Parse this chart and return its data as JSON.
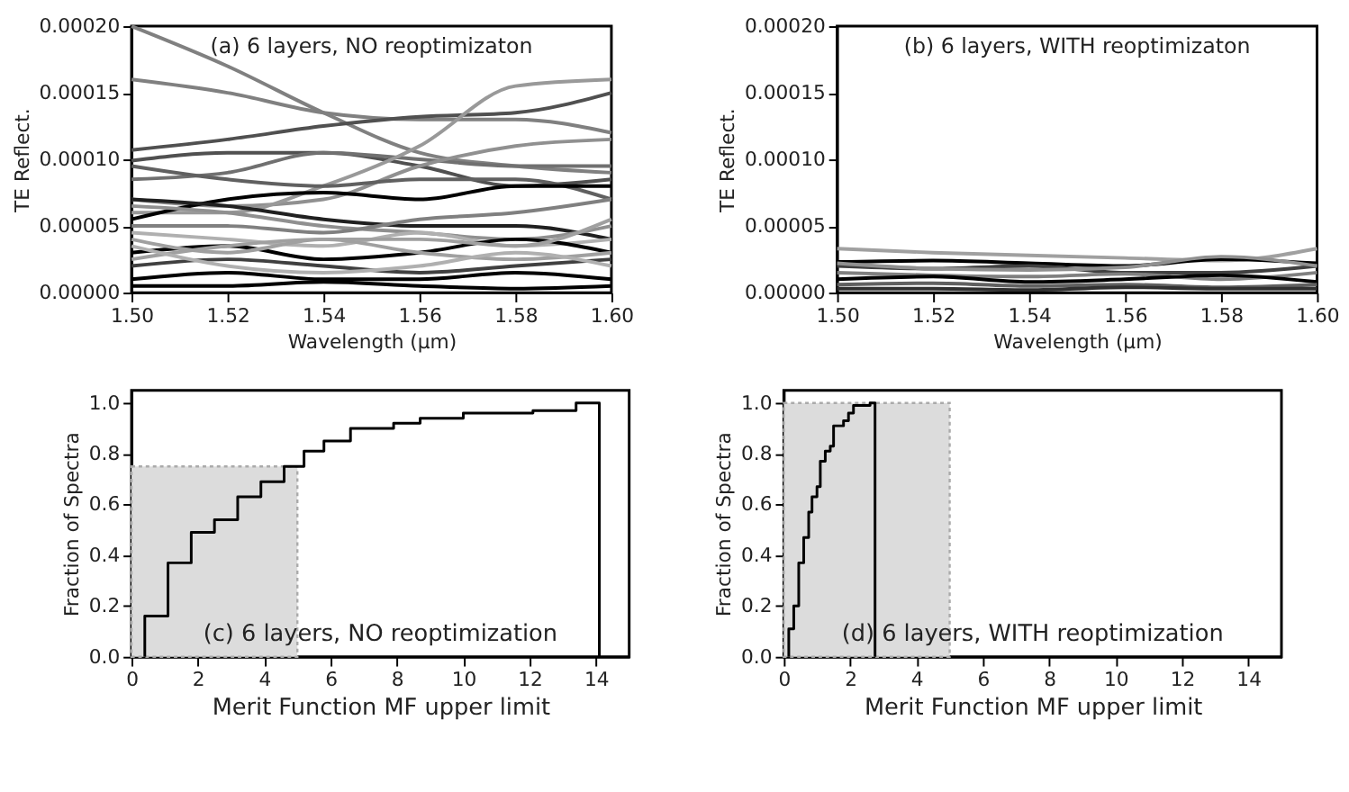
{
  "chart_data": [
    {
      "type": "line",
      "xlabel": "Wavelength (μm)",
      "ylabel": "TE Reflect.",
      "annotations": [
        "(a) 6 layers, NO reoptimizaton"
      ],
      "grid": false,
      "line_style": "solid",
      "marker": "none",
      "xlim": [
        1.5,
        1.6
      ],
      "ylim": [
        0,
        0.0002
      ],
      "xticks": [
        {
          "value": 1.5,
          "label": "1.50"
        },
        {
          "value": 1.52,
          "label": "1.52"
        },
        {
          "value": 1.54,
          "label": "1.54"
        },
        {
          "value": 1.56,
          "label": "1.56"
        },
        {
          "value": 1.58,
          "label": "1.58"
        },
        {
          "value": 1.6,
          "label": "1.60"
        }
      ],
      "yticks": [
        {
          "value": 0,
          "label": "0.00000"
        },
        {
          "value": 5e-05,
          "label": "0.00005"
        },
        {
          "value": 0.0001,
          "label": "0.00010"
        },
        {
          "value": 0.00015,
          "label": "0.00015"
        },
        {
          "value": 0.0002,
          "label": "0.00020"
        }
      ],
      "x": [
        1.5,
        1.52,
        1.54,
        1.56,
        1.58,
        1.6
      ],
      "series": [
        {
          "color": "#808080",
          "values": [
            0.0002,
            0.00017,
            0.000135,
            0.000105,
            9.5e-05,
            9e-05
          ]
        },
        {
          "color": "#808080",
          "values": [
            0.00016,
            0.00015,
            0.000135,
            0.00013,
            0.00013,
            0.00012
          ]
        },
        {
          "color": "#505050",
          "values": [
            0.000107,
            0.000115,
            0.000125,
            0.000132,
            0.000135,
            0.00015
          ]
        },
        {
          "color": "#505050",
          "values": [
            9.9e-05,
            0.000105,
            0.000105,
            9.5e-05,
            8e-05,
            8.5e-05
          ]
        },
        {
          "color": "#707070",
          "values": [
            8.5e-05,
            9e-05,
            0.000105,
            0.0001,
            9.5e-05,
            9.5e-05
          ]
        },
        {
          "color": "#909090",
          "values": [
            7e-05,
            6.5e-05,
            7e-05,
            9.5e-05,
            0.00011,
            0.000115
          ]
        },
        {
          "color": "#999999",
          "values": [
            6e-05,
            6e-05,
            8e-05,
            0.00011,
            0.000155,
            0.00016
          ]
        },
        {
          "color": "#606060",
          "values": [
            9.5e-05,
            8.5e-05,
            8e-05,
            8.5e-05,
            8.5e-05,
            7e-05
          ]
        },
        {
          "color": "#000000",
          "values": [
            5.5e-05,
            7e-05,
            7.5e-05,
            7e-05,
            8e-05,
            8e-05
          ]
        },
        {
          "color": "#202020",
          "values": [
            7e-05,
            6.5e-05,
            5.5e-05,
            5e-05,
            5e-05,
            4e-05
          ]
        },
        {
          "color": "#909090",
          "values": [
            6.5e-05,
            6e-05,
            5e-05,
            4.5e-05,
            4e-05,
            5e-05
          ]
        },
        {
          "color": "#b0b0b0",
          "values": [
            4.5e-05,
            4e-05,
            3.5e-05,
            4.5e-05,
            3.5e-05,
            4e-05
          ]
        },
        {
          "color": "#000000",
          "values": [
            3e-05,
            3.5e-05,
            2.5e-05,
            3e-05,
            4e-05,
            3e-05
          ]
        },
        {
          "color": "#404040",
          "values": [
            2e-05,
            2.5e-05,
            2e-05,
            1.5e-05,
            2e-05,
            2.5e-05
          ]
        },
        {
          "color": "#000000",
          "values": [
            1e-05,
            1.5e-05,
            1e-05,
            1e-05,
            1.5e-05,
            1e-05
          ]
        },
        {
          "color": "#a0a0a0",
          "values": [
            4e-05,
            3e-05,
            4e-05,
            3e-05,
            2.5e-05,
            3e-05
          ]
        },
        {
          "color": "#a0a0a0",
          "values": [
            2.5e-05,
            3.5e-05,
            4e-05,
            4e-05,
            3.5e-05,
            5.5e-05
          ]
        },
        {
          "color": "#000000",
          "values": [
            5e-06,
            5e-06,
            8e-06,
            5e-06,
            3e-06,
            5e-06
          ]
        },
        {
          "color": "#808080",
          "values": [
            5e-05,
            5e-05,
            4.5e-05,
            5.5e-05,
            6e-05,
            7e-05
          ]
        },
        {
          "color": "#b0b0b0",
          "values": [
            3.5e-05,
            2e-05,
            1.5e-05,
            2e-05,
            3e-05,
            2e-05
          ]
        }
      ]
    },
    {
      "type": "line",
      "xlabel": "Wavelength (μm)",
      "ylabel": "TE Reflect.",
      "annotations": [
        "(b) 6 layers, WITH reoptimizaton"
      ],
      "grid": false,
      "line_style": "solid",
      "marker": "none",
      "xlim": [
        1.5,
        1.6
      ],
      "ylim": [
        0,
        0.0002
      ],
      "xticks": [
        {
          "value": 1.5,
          "label": "1.50"
        },
        {
          "value": 1.52,
          "label": "1.52"
        },
        {
          "value": 1.54,
          "label": "1.54"
        },
        {
          "value": 1.56,
          "label": "1.56"
        },
        {
          "value": 1.58,
          "label": "1.58"
        },
        {
          "value": 1.6,
          "label": "1.60"
        }
      ],
      "yticks": [
        {
          "value": 0,
          "label": "0.00000"
        },
        {
          "value": 5e-05,
          "label": "0.00005"
        },
        {
          "value": 0.0001,
          "label": "0.00010"
        },
        {
          "value": 0.00015,
          "label": "0.00015"
        },
        {
          "value": 0.0002,
          "label": "0.00020"
        }
      ],
      "x": [
        1.5,
        1.52,
        1.54,
        1.56,
        1.58,
        1.6
      ],
      "series": [
        {
          "color": "#a0a0a0",
          "values": [
            3.3e-05,
            3e-05,
            2.8e-05,
            2.6e-05,
            2.4e-05,
            3.3e-05
          ]
        },
        {
          "color": "#000000",
          "values": [
            2.3e-05,
            2.4e-05,
            2.2e-05,
            2e-05,
            2.5e-05,
            2.2e-05
          ]
        },
        {
          "color": "#404040",
          "values": [
            2e-05,
            1.8e-05,
            2e-05,
            1.5e-05,
            1.5e-05,
            2e-05
          ]
        },
        {
          "color": "#808080",
          "values": [
            1.5e-05,
            1.3e-05,
            1.2e-05,
            1.4e-05,
            1e-05,
            1.5e-05
          ]
        },
        {
          "color": "#000000",
          "values": [
            1e-05,
            1.2e-05,
            8e-06,
            1e-05,
            1.3e-05,
            8e-06
          ]
        },
        {
          "color": "#606060",
          "values": [
            6e-06,
            7e-06,
            5e-06,
            6e-06,
            4e-06,
            6e-06
          ]
        },
        {
          "color": "#909090",
          "values": [
            2.2e-05,
            1.8e-05,
            1.7e-05,
            1.9e-05,
            2.7e-05,
            2e-05
          ]
        },
        {
          "color": "#303030",
          "values": [
            3e-06,
            3e-06,
            2e-06,
            4e-06,
            3e-06,
            3e-06
          ]
        }
      ]
    },
    {
      "type": "step",
      "xlabel": "Merit Function MF upper limit",
      "ylabel": "Fraction of Spectra",
      "annotations": [
        "(c) 6 layers, NO reoptimization"
      ],
      "grid": false,
      "marker": "none",
      "xlim": [
        0,
        15
      ],
      "ylim": [
        0,
        1.05
      ],
      "xticks": [
        0,
        2,
        4,
        6,
        8,
        10,
        12,
        14
      ],
      "yticks": [
        {
          "value": 0,
          "label": "0.0"
        },
        {
          "value": 0.2,
          "label": "0.2"
        },
        {
          "value": 0.4,
          "label": "0.4"
        },
        {
          "value": 0.6,
          "label": "0.6"
        },
        {
          "value": 0.8,
          "label": "0.8"
        },
        {
          "value": 1,
          "label": "1.0"
        }
      ],
      "series": [
        {
          "type": "area",
          "color": "#dcdcdc",
          "line_style": "dotted",
          "x": [
            0,
            5
          ],
          "values": [
            0.75,
            0.75
          ]
        },
        {
          "type": "step",
          "color": "#000000",
          "line_style": "solid",
          "x": [
            0.4,
            0.4,
            1.1,
            1.8,
            2.5,
            3.2,
            3.9,
            4.6,
            5.2,
            5.8,
            6.6,
            7.9,
            8.7,
            10.0,
            12.1,
            13.4,
            14.1
          ],
          "values": [
            0,
            0.16,
            0.37,
            0.49,
            0.54,
            0.63,
            0.69,
            0.75,
            0.81,
            0.85,
            0.9,
            0.92,
            0.94,
            0.96,
            0.97,
            1.0,
            0
          ]
        }
      ]
    },
    {
      "type": "step",
      "xlabel": "Merit Function MF upper limit",
      "ylabel": "Fraction of Spectra",
      "annotations": [
        "(d) 6 layers, WITH reoptimization"
      ],
      "grid": false,
      "marker": "none",
      "xlim": [
        0,
        15
      ],
      "ylim": [
        0,
        1.05
      ],
      "xticks": [
        0,
        2,
        4,
        6,
        8,
        10,
        12,
        14
      ],
      "yticks": [
        {
          "value": 0,
          "label": "0.0"
        },
        {
          "value": 0.2,
          "label": "0.2"
        },
        {
          "value": 0.4,
          "label": "0.4"
        },
        {
          "value": 0.6,
          "label": "0.6"
        },
        {
          "value": 0.8,
          "label": "0.8"
        },
        {
          "value": 1,
          "label": "1.0"
        }
      ],
      "series": [
        {
          "type": "area",
          "color": "#dcdcdc",
          "line_style": "dotted",
          "x": [
            0,
            5
          ],
          "values": [
            1.0,
            1.0
          ]
        },
        {
          "type": "step",
          "color": "#000000",
          "line_style": "solid",
          "x": [
            0.15,
            0.15,
            0.3,
            0.45,
            0.6,
            0.75,
            0.85,
            1.0,
            1.1,
            1.25,
            1.4,
            1.5,
            1.8,
            1.95,
            2.1,
            2.6,
            2.75
          ],
          "values": [
            0,
            0.11,
            0.2,
            0.37,
            0.47,
            0.57,
            0.63,
            0.67,
            0.77,
            0.81,
            0.83,
            0.91,
            0.93,
            0.96,
            0.99,
            1.0,
            0
          ]
        }
      ]
    }
  ]
}
